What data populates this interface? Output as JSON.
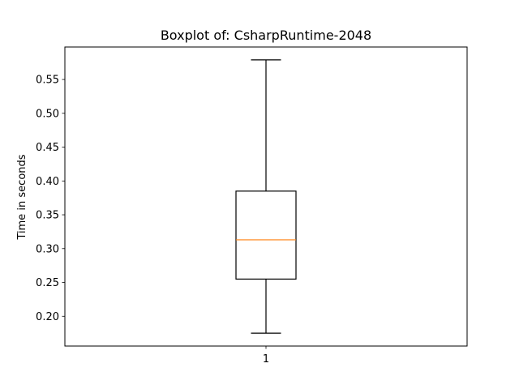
{
  "chart_data": {
    "type": "box",
    "title": "Boxplot of: CsharpRuntime-2048",
    "xlabel": "",
    "ylabel": "Time in seconds",
    "categories": [
      "1"
    ],
    "boxes": [
      {
        "category": "1",
        "whisker_low": 0.175,
        "q1": 0.255,
        "median": 0.313,
        "q3": 0.385,
        "whisker_high": 0.579
      }
    ],
    "ylim": [
      0.156,
      0.598
    ],
    "yticks": [
      0.2,
      0.25,
      0.3,
      0.35,
      0.4,
      0.45,
      0.5,
      0.55
    ],
    "ytick_labels": [
      "0.20",
      "0.25",
      "0.30",
      "0.35",
      "0.40",
      "0.45",
      "0.50",
      "0.55"
    ],
    "grid": false,
    "colors": {
      "box": "#000000",
      "median": "#ff7f0e",
      "axes": "#000000"
    }
  }
}
